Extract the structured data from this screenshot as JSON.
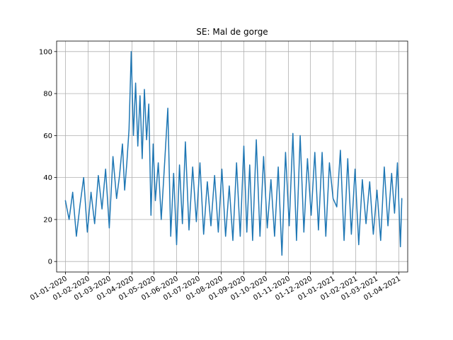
{
  "chart_data": {
    "type": "line",
    "title": "SE: Mal de gorge",
    "xlabel": "",
    "ylabel": "",
    "x_axis_type": "date",
    "xlim": [
      "2019-12-20",
      "2021-04-13"
    ],
    "ylim": [
      -5,
      105
    ],
    "grid": true,
    "x_tick_labels": [
      {
        "date": "2020-01-01",
        "label": "01-01-2020"
      },
      {
        "date": "2020-02-01",
        "label": "01-02-2020"
      },
      {
        "date": "2020-03-01",
        "label": "01-03-2020"
      },
      {
        "date": "2020-04-01",
        "label": "01-04-2020"
      },
      {
        "date": "2020-05-01",
        "label": "01-05-2020"
      },
      {
        "date": "2020-06-01",
        "label": "01-06-2020"
      },
      {
        "date": "2020-07-01",
        "label": "01-07-2020"
      },
      {
        "date": "2020-08-01",
        "label": "01-08-2020"
      },
      {
        "date": "2020-09-01",
        "label": "01-09-2020"
      },
      {
        "date": "2020-10-01",
        "label": "01-10-2020"
      },
      {
        "date": "2020-11-01",
        "label": "01-11-2020"
      },
      {
        "date": "2020-12-01",
        "label": "01-12-2020"
      },
      {
        "date": "2021-01-01",
        "label": "01-01-2021"
      },
      {
        "date": "2021-02-01",
        "label": "01-02-2021"
      },
      {
        "date": "2021-03-01",
        "label": "01-03-2021"
      },
      {
        "date": "2021-04-01",
        "label": "01-04-2021"
      }
    ],
    "y_ticks": [
      0,
      20,
      40,
      60,
      80,
      100
    ],
    "series": [
      {
        "color": "#1f77b4",
        "x": [
          "2020-01-01",
          "2020-01-06",
          "2020-01-11",
          "2020-01-16",
          "2020-01-21",
          "2020-01-26",
          "2020-01-31",
          "2020-02-05",
          "2020-02-10",
          "2020-02-15",
          "2020-02-20",
          "2020-02-25",
          "2020-03-01",
          "2020-03-06",
          "2020-03-11",
          "2020-03-15",
          "2020-03-19",
          "2020-03-22",
          "2020-03-25",
          "2020-03-28",
          "2020-03-31",
          "2020-04-03",
          "2020-04-06",
          "2020-04-09",
          "2020-04-12",
          "2020-04-15",
          "2020-04-18",
          "2020-04-21",
          "2020-04-24",
          "2020-04-27",
          "2020-04-30",
          "2020-05-03",
          "2020-05-07",
          "2020-05-11",
          "2020-05-15",
          "2020-05-20",
          "2020-05-24",
          "2020-05-28",
          "2020-06-01",
          "2020-06-05",
          "2020-06-09",
          "2020-06-13",
          "2020-06-18",
          "2020-06-23",
          "2020-06-28",
          "2020-07-03",
          "2020-07-08",
          "2020-07-13",
          "2020-07-18",
          "2020-07-23",
          "2020-07-28",
          "2020-08-02",
          "2020-08-07",
          "2020-08-12",
          "2020-08-17",
          "2020-08-22",
          "2020-08-27",
          "2020-09-01",
          "2020-09-05",
          "2020-09-09",
          "2020-09-13",
          "2020-09-18",
          "2020-09-23",
          "2020-09-28",
          "2020-10-03",
          "2020-10-08",
          "2020-10-13",
          "2020-10-18",
          "2020-10-23",
          "2020-10-28",
          "2020-11-02",
          "2020-11-07",
          "2020-11-12",
          "2020-11-17",
          "2020-11-22",
          "2020-11-27",
          "2020-12-02",
          "2020-12-07",
          "2020-12-12",
          "2020-12-17",
          "2020-12-22",
          "2020-12-27",
          "2021-01-01",
          "2021-01-06",
          "2021-01-11",
          "2021-01-16",
          "2021-01-21",
          "2021-01-26",
          "2021-01-31",
          "2021-02-05",
          "2021-02-10",
          "2021-02-15",
          "2021-02-20",
          "2021-02-25",
          "2021-03-02",
          "2021-03-07",
          "2021-03-12",
          "2021-03-17",
          "2021-03-22",
          "2021-03-26",
          "2021-03-30",
          "2021-04-03",
          "2021-04-05"
        ],
        "y": [
          29,
          20,
          33,
          12,
          27,
          40,
          14,
          33,
          18,
          41,
          25,
          44,
          16,
          50,
          30,
          41,
          56,
          34,
          47,
          63,
          100,
          60,
          85,
          55,
          79,
          49,
          82,
          58,
          75,
          22,
          56,
          29,
          47,
          20,
          43,
          73,
          12,
          42,
          8,
          46,
          18,
          57,
          15,
          45,
          19,
          47,
          13,
          38,
          17,
          41,
          14,
          44,
          12,
          36,
          10,
          47,
          12,
          55,
          14,
          46,
          10,
          58,
          12,
          50,
          16,
          39,
          12,
          45,
          3,
          52,
          17,
          61,
          10,
          60,
          14,
          49,
          22,
          52,
          15,
          52,
          12,
          47,
          30,
          26,
          53,
          10,
          49,
          13,
          44,
          8,
          39,
          18,
          38,
          13,
          34,
          10,
          45,
          17,
          42,
          23,
          47,
          7,
          30
        ]
      }
    ]
  }
}
